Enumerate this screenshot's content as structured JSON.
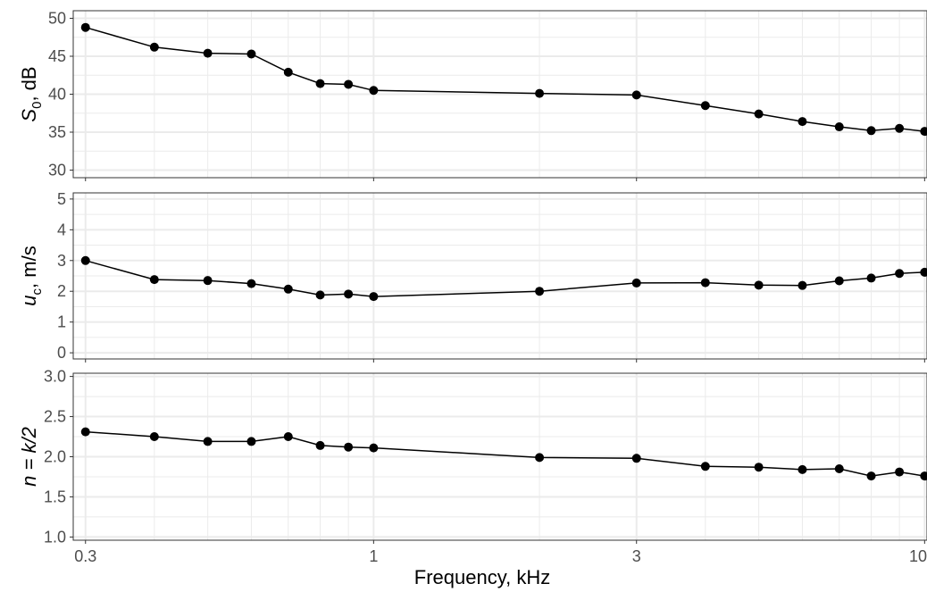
{
  "chart_data": {
    "type": "line",
    "xlabel": "Frequency, kHz",
    "xscale": "log",
    "xlim": [
      0.285,
      10.1
    ],
    "xticks": [
      0.3,
      1,
      3,
      10
    ],
    "xtick_labels": [
      "0.3",
      "1",
      "3",
      "10"
    ],
    "x": [
      0.3,
      0.4,
      0.5,
      0.6,
      0.7,
      0.8,
      0.9,
      1.0,
      2.0,
      3.0,
      4.0,
      5.0,
      6.0,
      7.0,
      8.0,
      9.0,
      10.0
    ],
    "grid": true,
    "panels": [
      {
        "ylabel_main": "S",
        "ylabel_sub": "0",
        "ylabel_rest": ", dB",
        "ylim": [
          29,
          51
        ],
        "yticks": [
          30,
          35,
          40,
          45,
          50
        ],
        "ytick_labels": [
          "30",
          "35",
          "40",
          "45",
          "50"
        ],
        "y": [
          48.8,
          46.2,
          45.4,
          45.3,
          42.9,
          41.4,
          41.3,
          40.5,
          40.1,
          39.9,
          38.5,
          37.4,
          36.4,
          35.7,
          35.2,
          35.5,
          35.1
        ]
      },
      {
        "ylabel_main": "u",
        "ylabel_sub": "c",
        "ylabel_rest": ", m/s",
        "ylim": [
          -0.2,
          5.2
        ],
        "yticks": [
          0,
          1,
          2,
          3,
          4,
          5
        ],
        "ytick_labels": [
          "0",
          "1",
          "2",
          "3",
          "4",
          "5"
        ],
        "y": [
          3.0,
          2.38,
          2.35,
          2.25,
          2.07,
          1.88,
          1.91,
          1.83,
          2.0,
          2.27,
          2.28,
          2.2,
          2.19,
          2.34,
          2.43,
          2.58,
          2.62
        ]
      },
      {
        "ylabel_main": "n = k/2",
        "ylabel_sub": "",
        "ylabel_rest": "",
        "ylim": [
          0.96,
          3.04
        ],
        "yticks": [
          1.0,
          1.5,
          2.0,
          2.5,
          3.0
        ],
        "ytick_labels": [
          "1.0",
          "1.5",
          "2.0",
          "2.5",
          "3.0"
        ],
        "y": [
          2.31,
          2.25,
          2.19,
          2.19,
          2.25,
          2.14,
          2.12,
          2.11,
          1.99,
          1.98,
          1.88,
          1.87,
          1.84,
          1.85,
          1.76,
          1.81,
          1.76
        ]
      }
    ]
  }
}
